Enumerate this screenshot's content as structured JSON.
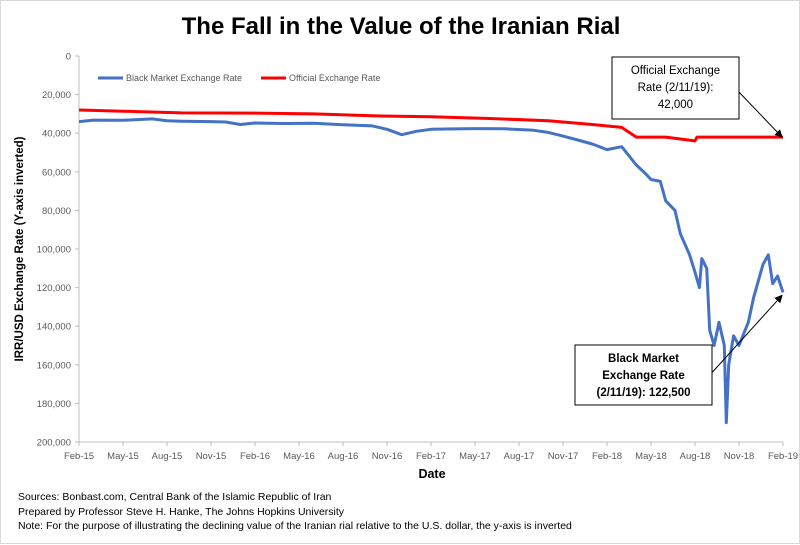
{
  "chart_data": {
    "type": "line",
    "title": "The Fall in the Value of the Iranian Rial",
    "xlabel": "Date",
    "ylabel": "IRR/USD Exchange Rate (Y-axis inverted)",
    "y_inverted": true,
    "ylim": [
      0,
      200000
    ],
    "xlim": [
      "2015-02",
      "2019-02"
    ],
    "x_ticks": [
      "Feb-15",
      "May-15",
      "Aug-15",
      "Nov-15",
      "Feb-16",
      "May-16",
      "Aug-16",
      "Nov-16",
      "Feb-17",
      "May-17",
      "Aug-17",
      "Nov-17",
      "Feb-18",
      "May-18",
      "Aug-18",
      "Nov-18",
      "Feb-19"
    ],
    "y_ticks": [
      "0",
      "20,000",
      "40,000",
      "60,000",
      "80,000",
      "100,000",
      "120,000",
      "140,000",
      "160,000",
      "180,000",
      "200,000"
    ],
    "grid": "none",
    "legend_position": "top-left",
    "series": [
      {
        "name": "Black Market Exchange Rate",
        "color": "#4472c4",
        "points": [
          [
            "2015-02",
            34000
          ],
          [
            "2015-03",
            33200
          ],
          [
            "2015-05",
            33300
          ],
          [
            "2015-07",
            32600
          ],
          [
            "2015-08",
            33500
          ],
          [
            "2015-09",
            33800
          ],
          [
            "2015-11",
            34000
          ],
          [
            "2015-12",
            34200
          ],
          [
            "2016-01",
            35500
          ],
          [
            "2016-02",
            34700
          ],
          [
            "2016-04",
            35000
          ],
          [
            "2016-06",
            34800
          ],
          [
            "2016-08",
            35600
          ],
          [
            "2016-10",
            36200
          ],
          [
            "2016-11",
            38000
          ],
          [
            "2016-12",
            40800
          ],
          [
            "2017-01",
            39000
          ],
          [
            "2017-02",
            38000
          ],
          [
            "2017-03",
            37800
          ],
          [
            "2017-05",
            37600
          ],
          [
            "2017-07",
            37700
          ],
          [
            "2017-09",
            38500
          ],
          [
            "2017-10",
            39600
          ],
          [
            "2017-11",
            41500
          ],
          [
            "2017-12",
            43500
          ],
          [
            "2018-01",
            45600
          ],
          [
            "2018-02",
            48500
          ],
          [
            "2018-03",
            47000
          ],
          [
            "2018-04",
            56500
          ],
          [
            "2018-04-20",
            61000
          ],
          [
            "2018-05",
            64000
          ],
          [
            "2018-05-20",
            65000
          ],
          [
            "2018-06",
            75000
          ],
          [
            "2018-06-20",
            80000
          ],
          [
            "2018-07",
            92000
          ],
          [
            "2018-07-20",
            103000
          ],
          [
            "2018-08",
            112000
          ],
          [
            "2018-08-10",
            120000
          ],
          [
            "2018-08-15",
            105000
          ],
          [
            "2018-08-25",
            110000
          ],
          [
            "2018-09",
            142000
          ],
          [
            "2018-09-10",
            150000
          ],
          [
            "2018-09-20",
            138000
          ],
          [
            "2018-10",
            150000
          ],
          [
            "2018-10-05",
            190000
          ],
          [
            "2018-10-10",
            160000
          ],
          [
            "2018-10-20",
            145000
          ],
          [
            "2018-11",
            150000
          ],
          [
            "2018-11-20",
            138000
          ],
          [
            "2018-12",
            125000
          ],
          [
            "2018-12-20",
            108000
          ],
          [
            "2019-01",
            103000
          ],
          [
            "2019-01-10",
            118000
          ],
          [
            "2019-01-20",
            114000
          ],
          [
            "2019-02",
            122500
          ]
        ]
      },
      {
        "name": "Official Exchange Rate",
        "color": "#ff0000",
        "points": [
          [
            "2015-02",
            28000
          ],
          [
            "2015-06",
            28800
          ],
          [
            "2015-09",
            29500
          ],
          [
            "2016-02",
            29600
          ],
          [
            "2016-06",
            30000
          ],
          [
            "2016-10",
            31000
          ],
          [
            "2017-02",
            31500
          ],
          [
            "2017-06",
            32400
          ],
          [
            "2017-10",
            33500
          ],
          [
            "2018-01",
            35500
          ],
          [
            "2018-03",
            37000
          ],
          [
            "2018-04",
            42000
          ],
          [
            "2018-06",
            42000
          ],
          [
            "2018-08",
            44000
          ],
          [
            "2018-08-05",
            42000
          ],
          [
            "2019-02",
            42000
          ]
        ]
      }
    ],
    "annotations": [
      {
        "text": [
          "Official Exchange",
          "Rate (2/11/19):",
          "42,000"
        ],
        "target": [
          "2019-02",
          42000
        ]
      },
      {
        "text": [
          "Black Market",
          "Exchange Rate",
          "(2/11/19): 122,500"
        ],
        "target": [
          "2019-02",
          122500
        ]
      }
    ]
  },
  "notes": [
    "Sources: Bonbast.com, Central Bank of the Islamic Republic of Iran",
    "Prepared by Professor Steve H. Hanke, The Johns Hopkins University",
    "Note: For the purpose of illustrating the declining value of the Iranian rial relative to the U.S. dollar, the y-axis is inverted"
  ]
}
